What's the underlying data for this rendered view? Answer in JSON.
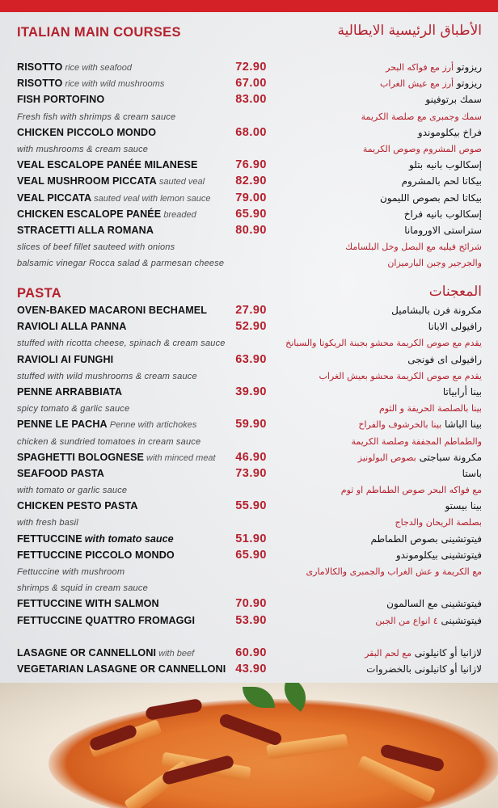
{
  "colors": {
    "accent_red": "#b5202d",
    "top_band": "#d42027",
    "background": "#eeeff1"
  },
  "sections": [
    {
      "title_en": "ITALIAN MAIN COURSES",
      "title_ar": "الأطباق الرئيسية الايطالية",
      "rows": [
        {
          "type": "item",
          "name": "RISOTTO",
          "desc": "rice with seafood",
          "price": "72.90",
          "ar_name": "ريزوتو",
          "ar_desc": "أرز مع فواكه البحر"
        },
        {
          "type": "item",
          "name": "RISOTTO",
          "desc": "rice with wild mushrooms",
          "price": "67.00",
          "ar_name": "ريزوتو",
          "ar_desc": "أرز مع عيش الغراب"
        },
        {
          "type": "item",
          "name": "FISH PORTOFINO",
          "price": "83.00",
          "ar_name": "سمك برتوفينو"
        },
        {
          "type": "note",
          "text": "Fresh fish with shrimps & cream sauce",
          "ar": "سمك وجمبرى مع صلصة الكريمة"
        },
        {
          "type": "item",
          "name": "CHICKEN PICCOLO MONDO",
          "price": "68.00",
          "ar_name": "فراخ بيكلوموندو"
        },
        {
          "type": "note",
          "text": "with mushrooms & cream sauce",
          "ar": "صوص المشروم وصوص الكريمة"
        },
        {
          "type": "item",
          "name": "VEAL ESCALOPE PANÉE MILANESE",
          "price": "76.90",
          "ar_name": "إسكالوب بانيه بتلو"
        },
        {
          "type": "item",
          "name": "VEAL MUSHROOM PICCATA",
          "desc": "sauted veal",
          "price": "82.90",
          "ar_name": "بيكاتا لحم بالمشروم"
        },
        {
          "type": "item",
          "name": "VEAL PICCATA",
          "desc": "sauted veal with lemon sauce",
          "price": "79.00",
          "ar_name": "بيكاتا لحم بصوص الليمون"
        },
        {
          "type": "item",
          "name": "CHICKEN ESCALOPE PANÉE",
          "desc": "breaded",
          "price": "65.90",
          "ar_name": "إسكالوب بانيه فراخ"
        },
        {
          "type": "item",
          "name": "STRACETTI ALLA ROMANA",
          "price": "80.90",
          "ar_name": "ستراستى الاورومانا"
        },
        {
          "type": "note",
          "text": "slices of beef fillet sauteed with onions",
          "ar": "شرائح فيليه مع البصل وخل البلسامك"
        },
        {
          "type": "note",
          "text": "balsamic vinegar Rocca salad & parmesan cheese",
          "ar": "والجرجير وجبن البارميزان"
        }
      ]
    },
    {
      "title_en": "PASTA",
      "title_ar": "المعجنات",
      "rows": [
        {
          "type": "item",
          "name": "OVEN-BAKED MACARONI BECHAMEL",
          "price": "27.90",
          "ar_name": "مكرونة فرن بالبشاميل"
        },
        {
          "type": "item",
          "name": "RAVIOLI ALLA PANNA",
          "price": "52.90",
          "ar_name": "رافيولى الابانا"
        },
        {
          "type": "note",
          "text": "stuffed with ricotta cheese, spinach & cream sauce",
          "ar": "يقدم مع صوص الكريمة محشو بجبنة الريكوتا والسبانخ"
        },
        {
          "type": "item",
          "name": "RAVIOLI AI FUNGHI",
          "price": "63.90",
          "ar_name": "رافيولى اى فونجى"
        },
        {
          "type": "note",
          "text": "stuffed with wild mushrooms & cream sauce",
          "ar": "يقدم مع صوص الكريمة محشو بعيش الغراب"
        },
        {
          "type": "item",
          "name": "PENNE ARRABBIATA",
          "price": "39.90",
          "ar_name": "بينا أرابياتا"
        },
        {
          "type": "note",
          "text": "spicy tomato & garlic sauce",
          "ar": "بينا بالصلصة الحريفة و الثوم"
        },
        {
          "type": "item",
          "name": "PENNE LE PACHA",
          "desc": "Penne with artichokes",
          "price": "59.90",
          "ar_name": "بينا الباشا",
          "ar_desc": "بينا بالخرشوف والفراخ"
        },
        {
          "type": "note",
          "text": "chicken & sundried tomatoes in cream sauce",
          "ar": "والطماطم المجففة وصلصة الكريمة"
        },
        {
          "type": "item",
          "name": "SPAGHETTI BOLOGNESE",
          "desc": "with minced meat",
          "price": "46.90",
          "ar_name": "مكرونة سباجتى",
          "ar_desc": "بصوص البولونيز"
        },
        {
          "type": "item",
          "name": "SEAFOOD PASTA",
          "price": "73.90",
          "ar_name": "باستا"
        },
        {
          "type": "note",
          "text": "with tomato or garlic sauce",
          "ar": "مع فواكه البحر  صوص الطماطم او ثوم"
        },
        {
          "type": "item",
          "name": "CHICKEN PESTO PASTA",
          "price": "55.90",
          "ar_name": "بينا بيستو"
        },
        {
          "type": "note",
          "text": "with fresh basil",
          "ar": "بصلصة الريحان والدجاج"
        },
        {
          "type": "item",
          "name": "FETTUCCINE",
          "desc": "with tomato sauce",
          "desc_strong": true,
          "price": "51.90",
          "ar_name": "فيتوتشينى بصوص الطماطم"
        },
        {
          "type": "item",
          "name": "FETTUCCINE PICCOLO MONDO",
          "price": "65.90",
          "ar_name": "فيتوتشينى بيكلوموندو"
        },
        {
          "type": "note",
          "text": "Fettuccine with mushroom",
          "ar": "مع الكريمة و عش الغراب والجمبرى والكالامارى"
        },
        {
          "type": "note",
          "text": " shrimps & squid in cream sauce"
        },
        {
          "type": "item",
          "name": "FETTUCCINE WITH SALMON",
          "price": "70.90",
          "ar_name": "فيتوتشينى مع السالمون"
        },
        {
          "type": "item",
          "name": "FETTUCCINE QUATTRO FROMAGGI",
          "price": "53.90",
          "ar_name": "فيتوتشينى",
          "ar_desc": "٤ انواع من الجبن"
        },
        {
          "type": "spacer"
        },
        {
          "type": "item",
          "name": "LASAGNE OR CANNELLONI",
          "desc": "with beef",
          "price": "60.90",
          "ar_name": "لازانيا أو كانيلونى",
          "ar_desc": "مع لحم البقر"
        },
        {
          "type": "item",
          "name": "VEGETARIAN LASAGNE OR CANNELLONI",
          "price": "43.90",
          "ar_name": "لازانيا أو كانيلونى بالخضروات"
        }
      ]
    }
  ]
}
